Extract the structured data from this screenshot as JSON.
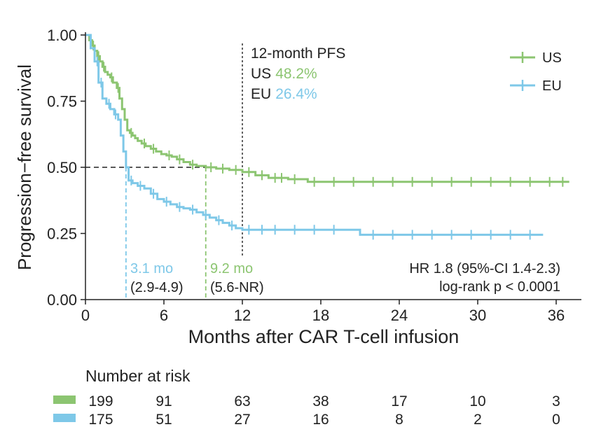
{
  "chart_data": {
    "type": "line",
    "ylabel": "Progression−free survival",
    "xlabel": "Months after CAR T-cell infusion",
    "xlim": [
      0,
      37.5
    ],
    "ylim": [
      0,
      1
    ],
    "x_ticks": [
      0,
      6,
      12,
      18,
      24,
      30,
      36
    ],
    "x_tick_labels": [
      "0",
      "6",
      "12",
      "18",
      "24",
      "30",
      "36"
    ],
    "y_ticks": [
      0,
      0.25,
      0.5,
      0.75,
      1.0
    ],
    "y_tick_labels": [
      "0.00",
      "0.25",
      "0.50",
      "0.75",
      "1.00"
    ],
    "legend": {
      "placement": "top-right"
    },
    "colors": {
      "US": "#8cc571",
      "EU": "#7ec8e8"
    },
    "series": [
      {
        "name": "US",
        "color": "#8cc571",
        "x": [
          0,
          0.3,
          0.5,
          0.7,
          0.9,
          1.1,
          1.3,
          1.5,
          1.7,
          1.9,
          2.1,
          2.4,
          2.6,
          2.8,
          3.0,
          3.2,
          3.4,
          3.6,
          3.8,
          4.0,
          4.3,
          4.6,
          5.0,
          5.4,
          5.8,
          6.2,
          6.6,
          7.0,
          7.5,
          8.0,
          8.5,
          9.2,
          10.0,
          11.0,
          12.0,
          13.0,
          14.0,
          15.5,
          17.0,
          37.0
        ],
        "y": [
          1.0,
          0.98,
          0.96,
          0.94,
          0.92,
          0.9,
          0.88,
          0.86,
          0.85,
          0.84,
          0.82,
          0.8,
          0.76,
          0.72,
          0.68,
          0.64,
          0.63,
          0.62,
          0.61,
          0.6,
          0.59,
          0.58,
          0.57,
          0.56,
          0.55,
          0.545,
          0.54,
          0.53,
          0.52,
          0.51,
          0.505,
          0.5,
          0.495,
          0.49,
          0.482,
          0.47,
          0.46,
          0.455,
          0.445,
          0.445
        ],
        "censor_x": [
          0.6,
          1.0,
          1.4,
          2.0,
          2.5,
          3.5,
          4.5,
          5.2,
          6.4,
          7.2,
          8.2,
          9.6,
          10.5,
          11.5,
          12.5,
          13.5,
          14.5,
          15.0,
          16.0,
          17.5,
          19.0,
          20.5,
          22.0,
          23.5,
          25.0,
          26.5,
          28.0,
          29.5,
          31.0,
          32.5,
          34.0,
          35.5,
          36.5
        ]
      },
      {
        "name": "EU",
        "color": "#7ec8e8",
        "x": [
          0,
          0.4,
          0.7,
          1.0,
          1.3,
          1.6,
          1.9,
          2.2,
          2.5,
          2.7,
          2.9,
          3.1,
          3.3,
          3.6,
          4.0,
          4.5,
          5.0,
          5.5,
          6.0,
          6.5,
          7.0,
          7.5,
          8.0,
          8.5,
          9.0,
          9.5,
          10.0,
          10.5,
          11.0,
          11.5,
          12.0,
          15.0,
          18.0,
          21.0,
          35.0
        ],
        "y": [
          1.0,
          0.95,
          0.9,
          0.82,
          0.76,
          0.74,
          0.72,
          0.7,
          0.68,
          0.62,
          0.56,
          0.5,
          0.45,
          0.44,
          0.43,
          0.42,
          0.4,
          0.38,
          0.37,
          0.36,
          0.35,
          0.345,
          0.34,
          0.33,
          0.32,
          0.31,
          0.3,
          0.29,
          0.28,
          0.27,
          0.264,
          0.264,
          0.264,
          0.245,
          0.245
        ],
        "censor_x": [
          0.9,
          1.2,
          1.8,
          2.3,
          3.5,
          4.2,
          5.2,
          6.2,
          7.2,
          8.2,
          9.2,
          10.2,
          11.2,
          12.5,
          13.5,
          14.5,
          16.0,
          17.5,
          19.0,
          22.0,
          23.5,
          25.0,
          26.5,
          28.0,
          29.5,
          31.0,
          32.5,
          34.0
        ]
      }
    ],
    "reference_lines": {
      "median_y": 0.5,
      "twelve_month_x": 12,
      "eu_median_x": 3.1,
      "us_median_x": 9.2
    },
    "annotations": {
      "pfs_title": "12-month PFS",
      "us_label": "US",
      "us_value": "48.2%",
      "eu_label": "EU",
      "eu_value": "26.4%",
      "eu_median": "3.1 mo",
      "eu_ci": "(2.9-4.9)",
      "us_median": "9.2 mo",
      "us_ci": "(5.6-NR)",
      "hr": "HR 1.8 (95%-CI 1.4-2.3)",
      "logrank": "log-rank p < 0.0001"
    },
    "risk_table": {
      "title": "Number at risk",
      "times": [
        0,
        6,
        12,
        18,
        24,
        30,
        36
      ],
      "rows": [
        {
          "name": "US",
          "values": [
            "199",
            "91",
            "63",
            "38",
            "17",
            "10",
            "3"
          ]
        },
        {
          "name": "EU",
          "values": [
            "175",
            "51",
            "27",
            "16",
            "8",
            "2",
            "0"
          ]
        }
      ]
    }
  }
}
